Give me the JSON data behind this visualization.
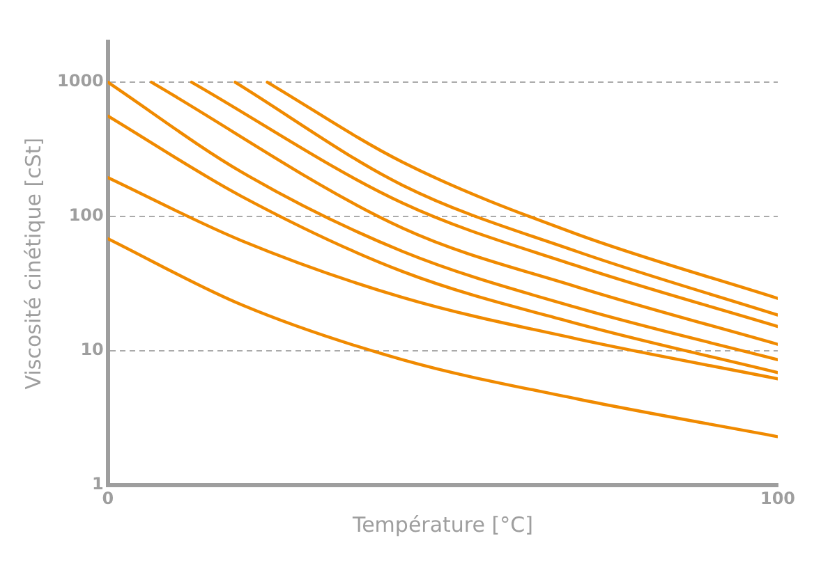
{
  "chart_data": {
    "type": "line",
    "xlabel": "Température [°C]",
    "ylabel": "Viscosité cinétique [cSt]",
    "xlim": [
      0,
      100
    ],
    "xticks": [
      0,
      100
    ],
    "ylim": [
      1,
      2000
    ],
    "yticks": [
      1,
      10,
      100,
      1000
    ],
    "log": "y",
    "grid": "y",
    "legend": false,
    "marker": "none",
    "line_style": "solid",
    "series": [
      {
        "color": "#f08a00",
        "x": [
          23.8,
          44,
          70,
          100
        ],
        "values": [
          1000,
          254,
          74,
          24.6
        ]
      },
      {
        "color": "#f08a00",
        "x": [
          19,
          44,
          70,
          100
        ],
        "values": [
          1000,
          171,
          55,
          18.5
        ]
      },
      {
        "color": "#f08a00",
        "x": [
          12.5,
          44,
          70,
          100
        ],
        "values": [
          1000,
          126,
          43,
          15.2
        ]
      },
      {
        "color": "#f08a00",
        "x": [
          6.5,
          44,
          70,
          100
        ],
        "values": [
          1000,
          82,
          30,
          11.2
        ]
      },
      {
        "color": "#f08a00",
        "x": [
          0,
          20,
          44,
          70,
          100
        ],
        "values": [
          1000,
          214,
          55,
          21,
          8.6
        ]
      },
      {
        "color": "#f08a00",
        "x": [
          0,
          20,
          44,
          70,
          100
        ],
        "values": [
          560,
          141,
          39,
          16,
          6.9
        ]
      },
      {
        "color": "#f08a00",
        "x": [
          0,
          20,
          44,
          70,
          100
        ],
        "values": [
          195,
          66,
          25,
          12.3,
          6.2
        ]
      },
      {
        "color": "#f08a00",
        "x": [
          0,
          20,
          44,
          70,
          100
        ],
        "values": [
          68.5,
          22,
          8.6,
          4.4,
          2.3
        ]
      }
    ]
  }
}
